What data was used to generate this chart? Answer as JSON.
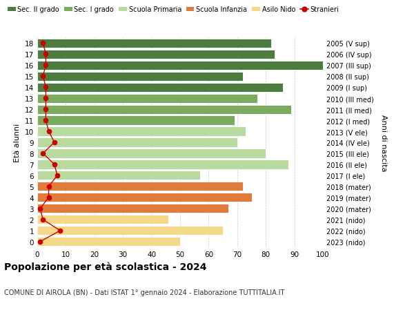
{
  "ages": [
    18,
    17,
    16,
    15,
    14,
    13,
    12,
    11,
    10,
    9,
    8,
    7,
    6,
    5,
    4,
    3,
    2,
    1,
    0
  ],
  "bar_values": [
    82,
    83,
    100,
    72,
    86,
    77,
    89,
    69,
    73,
    70,
    80,
    88,
    57,
    72,
    75,
    67,
    46,
    65,
    50
  ],
  "bar_colors": [
    "#4d7c3f",
    "#4d7c3f",
    "#4d7c3f",
    "#4d7c3f",
    "#4d7c3f",
    "#7aab5e",
    "#7aab5e",
    "#7aab5e",
    "#b8d9a0",
    "#b8d9a0",
    "#b8d9a0",
    "#b8d9a0",
    "#b8d9a0",
    "#e07c3b",
    "#e07c3b",
    "#e07c3b",
    "#f5d98b",
    "#f5d98b",
    "#f5d98b"
  ],
  "stranieri_values": [
    2,
    3,
    3,
    2,
    3,
    3,
    3,
    3,
    4,
    6,
    2,
    6,
    7,
    4,
    4,
    1,
    2,
    8,
    1
  ],
  "right_labels": [
    "2005 (V sup)",
    "2006 (IV sup)",
    "2007 (III sup)",
    "2008 (II sup)",
    "2009 (I sup)",
    "2010 (III med)",
    "2011 (II med)",
    "2012 (I med)",
    "2013 (V ele)",
    "2014 (IV ele)",
    "2015 (III ele)",
    "2016 (II ele)",
    "2017 (I ele)",
    "2018 (mater)",
    "2019 (mater)",
    "2020 (mater)",
    "2021 (nido)",
    "2022 (nido)",
    "2023 (nido)"
  ],
  "legend_labels": [
    "Sec. II grado",
    "Sec. I grado",
    "Scuola Primaria",
    "Scuola Infanzia",
    "Asilo Nido",
    "Stranieri"
  ],
  "legend_colors": [
    "#4d7c3f",
    "#7aab5e",
    "#b8d9a0",
    "#e07c3b",
    "#f5d98b",
    "#cc0000"
  ],
  "ylabel_left": "Età alunni",
  "ylabel_right": "Anni di nascita",
  "xlim": [
    0,
    100
  ],
  "xticks": [
    0,
    10,
    20,
    30,
    40,
    50,
    60,
    70,
    80,
    90,
    100
  ],
  "title": "Popolazione per età scolastica - 2024",
  "subtitle": "COMUNE DI AIROLA (BN) - Dati ISTAT 1° gennaio 2024 - Elaborazione TUTTITALIA.IT",
  "stranieri_color": "#cc0000",
  "background_color": "#ffffff",
  "grid_color": "#cccccc"
}
